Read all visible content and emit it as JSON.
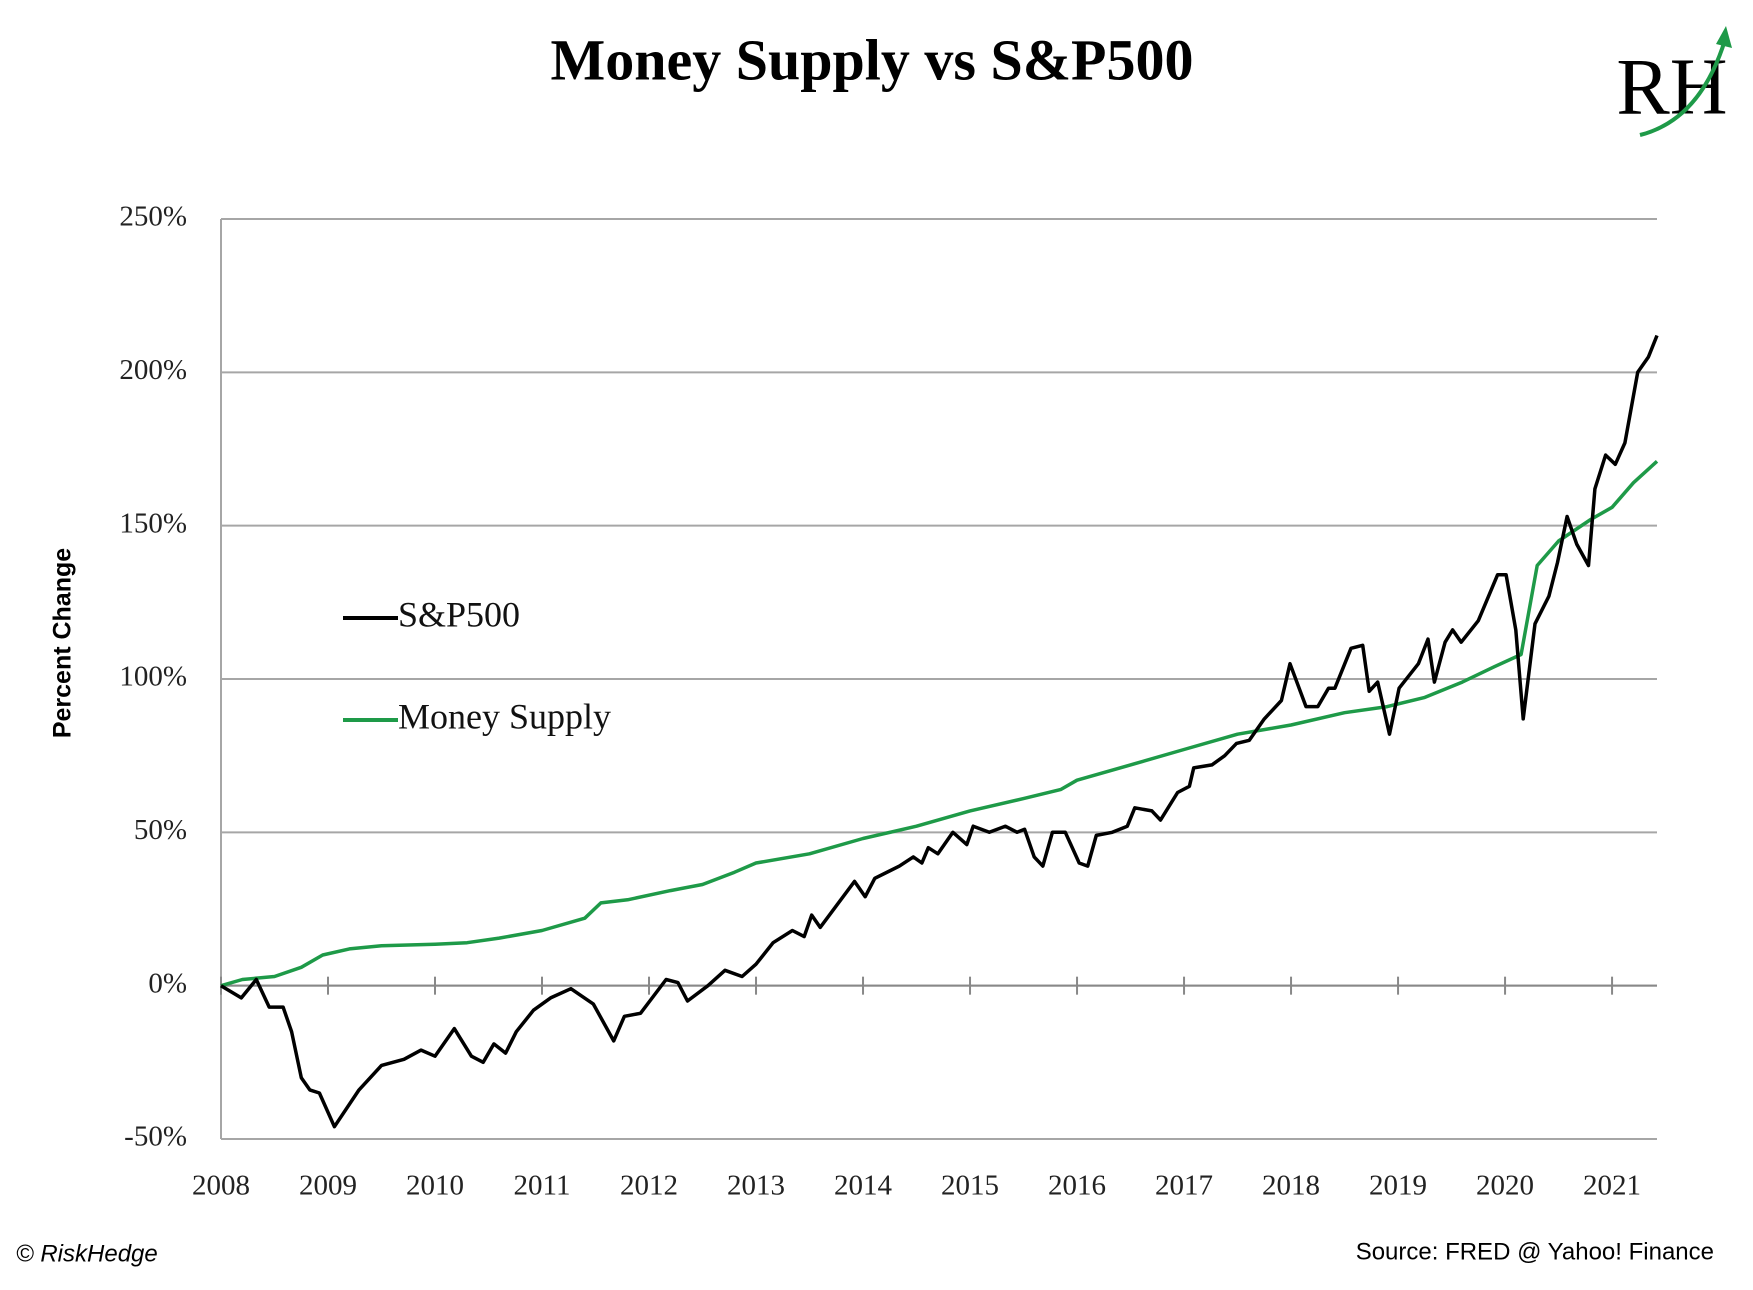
{
  "chart_data": {
    "type": "line",
    "title": "Money Supply vs S&P500",
    "logo": "RH",
    "y_label": "Percent Change",
    "footer_left": "© RiskHedge",
    "footer_right": "Source: FRED @ Yahoo! Finance",
    "xlim": [
      2008,
      2021.42
    ],
    "xticks": [
      2008,
      2009,
      2010,
      2011,
      2012,
      2013,
      2014,
      2015,
      2016,
      2017,
      2018,
      2019,
      2020,
      2021
    ],
    "ylim": [
      -50,
      250
    ],
    "yticks": [
      {
        "value": -50,
        "label": "-50%"
      },
      {
        "value": 0,
        "label": "0%"
      },
      {
        "value": 50,
        "label": "50%"
      },
      {
        "value": 100,
        "label": "100%"
      },
      {
        "value": 150,
        "label": "150%"
      },
      {
        "value": 200,
        "label": "200%"
      },
      {
        "value": 250,
        "label": "250%"
      }
    ],
    "grid": true,
    "legend": "left",
    "series": [
      {
        "name": "S&P500",
        "color": "#000000",
        "x": [
          2008.0,
          2008.19,
          2008.33,
          2008.45,
          2008.58,
          2008.66,
          2008.75,
          2008.83,
          2008.92,
          2009.06,
          2009.29,
          2009.5,
          2009.71,
          2009.87,
          2010.0,
          2010.18,
          2010.34,
          2010.45,
          2010.55,
          2010.66,
          2010.76,
          2010.92,
          2011.08,
          2011.27,
          2011.48,
          2011.67,
          2011.77,
          2011.92,
          2012.16,
          2012.27,
          2012.36,
          2012.55,
          2012.71,
          2012.87,
          2013.0,
          2013.16,
          2013.34,
          2013.45,
          2013.52,
          2013.6,
          2013.92,
          2014.02,
          2014.11,
          2014.34,
          2014.47,
          2014.55,
          2014.61,
          2014.7,
          2014.84,
          2014.97,
          2015.03,
          2015.18,
          2015.33,
          2015.44,
          2015.51,
          2015.6,
          2015.68,
          2015.77,
          2015.89,
          2016.02,
          2016.1,
          2016.18,
          2016.33,
          2016.47,
          2016.54,
          2016.7,
          2016.78,
          2016.94,
          2017.05,
          2017.09,
          2017.26,
          2017.38,
          2017.49,
          2017.61,
          2017.75,
          2017.91,
          2017.99,
          2018.14,
          2018.25,
          2018.35,
          2018.41,
          2018.56,
          2018.67,
          2018.73,
          2018.81,
          2018.92,
          2019.01,
          2019.19,
          2019.28,
          2019.34,
          2019.44,
          2019.51,
          2019.59,
          2019.75,
          2019.93,
          2020.01,
          2020.1,
          2020.17,
          2020.28,
          2020.41,
          2020.49,
          2020.58,
          2020.67,
          2020.78,
          2020.84,
          2020.94,
          2021.03,
          2021.12,
          2021.24,
          2021.34,
          2021.42
        ],
        "values": [
          0,
          -4,
          2,
          -7,
          -7,
          -15,
          -30,
          -34,
          -35,
          -46,
          -34,
          -26,
          -24,
          -21,
          -23,
          -14,
          -23,
          -25,
          -19,
          -22,
          -15,
          -8,
          -4,
          -1,
          -6,
          -18,
          -10,
          -9,
          2,
          1,
          -5,
          0,
          5,
          3,
          7,
          14,
          18,
          16,
          23,
          19,
          34,
          29,
          35,
          39,
          42,
          40,
          45,
          43,
          50,
          46,
          52,
          50,
          52,
          50,
          51,
          42,
          39,
          50,
          50,
          40,
          39,
          49,
          50,
          52,
          58,
          57,
          54,
          63,
          65,
          71,
          72,
          75,
          79,
          80,
          87,
          93,
          105,
          91,
          91,
          97,
          97,
          110,
          111,
          96,
          99,
          82,
          97,
          105,
          113,
          99,
          112,
          116,
          112,
          119,
          134,
          134,
          116,
          87,
          118,
          127,
          138,
          153,
          144,
          137,
          162,
          173,
          170,
          177,
          200,
          205,
          212
        ]
      },
      {
        "name": "Money Supply",
        "color": "#1e9a48",
        "x": [
          2008.0,
          2008.2,
          2008.5,
          2008.75,
          2008.95,
          2009.2,
          2009.5,
          2010.0,
          2010.3,
          2010.6,
          2011.0,
          2011.4,
          2011.55,
          2011.8,
          2012.2,
          2012.5,
          2012.8,
          2013.0,
          2013.5,
          2014.0,
          2014.5,
          2015.0,
          2015.5,
          2015.85,
          2016.0,
          2016.5,
          2017.0,
          2017.5,
          2018.0,
          2018.5,
          2018.9,
          2019.25,
          2019.6,
          2019.9,
          2020.15,
          2020.3,
          2020.5,
          2020.8,
          2021.0,
          2021.2,
          2021.42
        ],
        "values": [
          0,
          2,
          3,
          6,
          10,
          12,
          13,
          13.5,
          14,
          15.5,
          18,
          22,
          27,
          28,
          31,
          33,
          37,
          40,
          43,
          48,
          52,
          57,
          61,
          64,
          67,
          72,
          77,
          82,
          85,
          89,
          91,
          94,
          99,
          104,
          108,
          137,
          145,
          152,
          156,
          164,
          171
        ]
      }
    ]
  }
}
